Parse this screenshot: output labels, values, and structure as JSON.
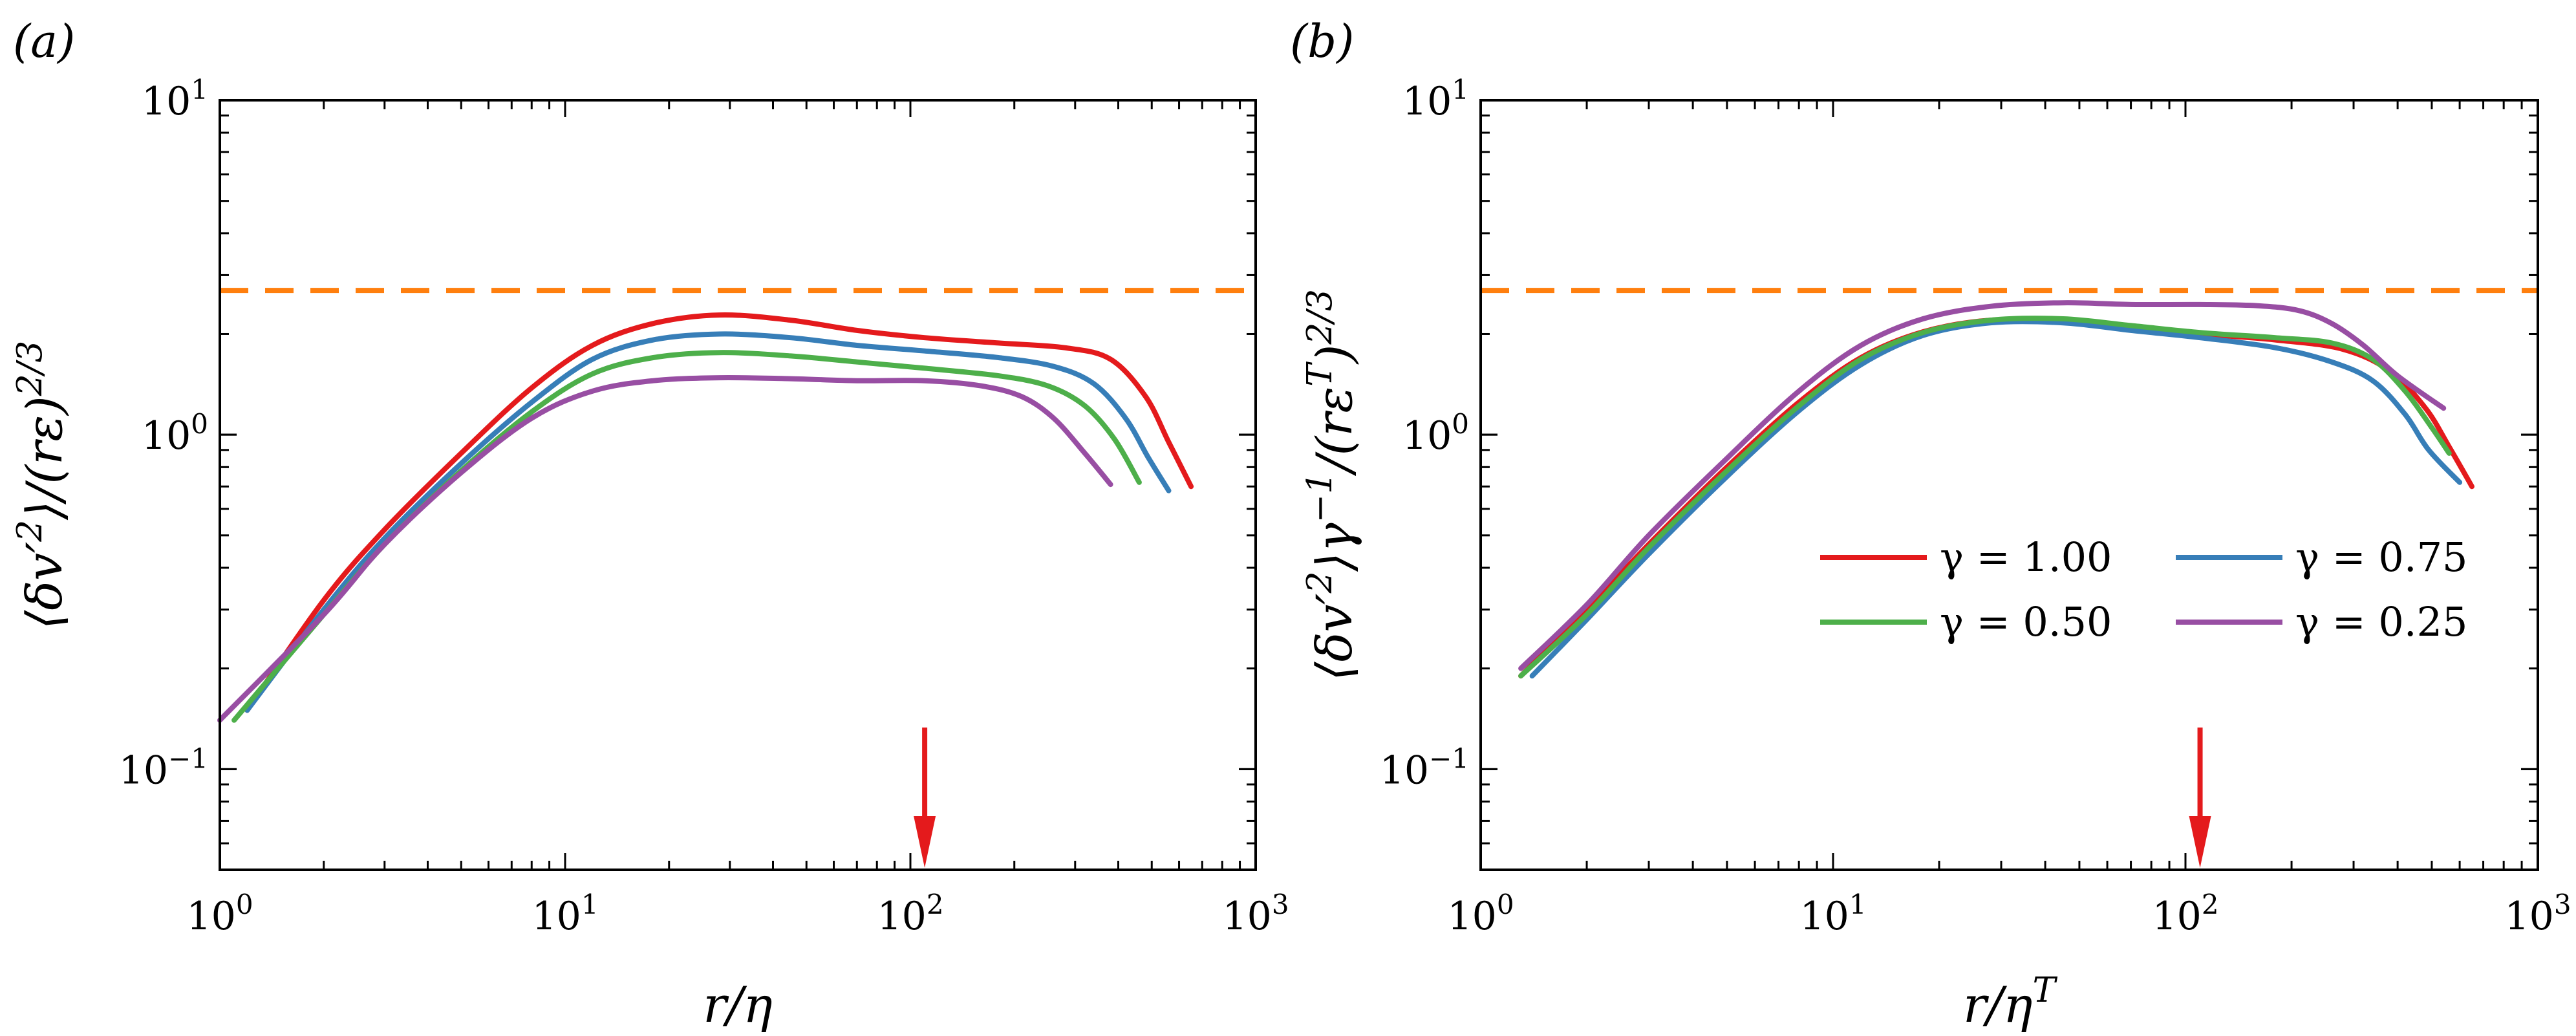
{
  "chart_data": [
    {
      "type": "line",
      "panel_label": "(a)",
      "xlabel": "r/η",
      "ylabel": "⟨δv′²⟩/(rε)^{2/3}",
      "xscale": "log",
      "yscale": "log",
      "xlim": [
        1,
        1000
      ],
      "ylim": [
        0.05,
        10
      ],
      "x_ticks": [
        {
          "v": 1,
          "m": "10",
          "e": "0"
        },
        {
          "v": 10,
          "m": "10",
          "e": "1"
        },
        {
          "v": 100,
          "m": "10",
          "e": "2"
        },
        {
          "v": 1000,
          "m": "10",
          "e": "3"
        }
      ],
      "y_ticks": [
        {
          "v": 0.1,
          "m": "10",
          "e": "−1"
        },
        {
          "v": 1,
          "m": "10",
          "e": "0"
        },
        {
          "v": 10,
          "m": "10",
          "e": "1"
        }
      ],
      "reference_line": {
        "y": 2.7,
        "color": "#ff7f0e",
        "style": "dashed"
      },
      "arrow": {
        "x": 110,
        "color": "#e41a1c"
      },
      "grid": false,
      "series": [
        {
          "gamma": "1.00",
          "color": "#e41a1c",
          "x": [
            1.2,
            2,
            3,
            5,
            8,
            12,
            18,
            28,
            45,
            70,
            110,
            180,
            280,
            380,
            480,
            560,
            650
          ],
          "y": [
            0.15,
            0.32,
            0.52,
            0.88,
            1.38,
            1.85,
            2.15,
            2.28,
            2.2,
            2.05,
            1.95,
            1.88,
            1.82,
            1.68,
            1.3,
            0.95,
            0.7
          ]
        },
        {
          "gamma": "0.75",
          "color": "#377eb8",
          "x": [
            1.2,
            2,
            3,
            5,
            8,
            12,
            18,
            28,
            45,
            70,
            110,
            180,
            260,
            340,
            420,
            490,
            560
          ],
          "y": [
            0.15,
            0.3,
            0.49,
            0.82,
            1.25,
            1.68,
            1.92,
            2.0,
            1.95,
            1.85,
            1.78,
            1.7,
            1.6,
            1.42,
            1.12,
            0.85,
            0.68
          ]
        },
        {
          "gamma": "0.50",
          "color": "#4daf4a",
          "x": [
            1.1,
            2,
            3,
            5,
            8,
            12,
            18,
            28,
            45,
            70,
            110,
            180,
            250,
            320,
            390,
            460
          ],
          "y": [
            0.14,
            0.29,
            0.47,
            0.78,
            1.17,
            1.52,
            1.7,
            1.76,
            1.72,
            1.65,
            1.58,
            1.5,
            1.4,
            1.22,
            0.97,
            0.72
          ]
        },
        {
          "gamma": "0.25",
          "color": "#984ea3",
          "x": [
            1.0,
            2,
            3,
            5,
            8,
            12,
            18,
            28,
            45,
            70,
            110,
            160,
            210,
            260,
            320,
            380
          ],
          "y": [
            0.14,
            0.29,
            0.47,
            0.77,
            1.12,
            1.35,
            1.45,
            1.48,
            1.47,
            1.45,
            1.45,
            1.4,
            1.3,
            1.12,
            0.88,
            0.71
          ]
        }
      ]
    },
    {
      "type": "line",
      "panel_label": "(b)",
      "xlabel": "r/η^T",
      "ylabel": "⟨δv′²⟩γ^{−1}/(rε^T)^{2/3}",
      "xscale": "log",
      "yscale": "log",
      "xlim": [
        1,
        1000
      ],
      "ylim": [
        0.05,
        10
      ],
      "x_ticks": [
        {
          "v": 1,
          "m": "10",
          "e": "0"
        },
        {
          "v": 10,
          "m": "10",
          "e": "1"
        },
        {
          "v": 100,
          "m": "10",
          "e": "2"
        },
        {
          "v": 1000,
          "m": "10",
          "e": "3"
        }
      ],
      "y_ticks": [
        {
          "v": 0.1,
          "m": "10",
          "e": "−1"
        },
        {
          "v": 1,
          "m": "10",
          "e": "0"
        },
        {
          "v": 10,
          "m": "10",
          "e": "1"
        }
      ],
      "reference_line": {
        "y": 2.7,
        "color": "#ff7f0e",
        "style": "dashed"
      },
      "arrow": {
        "x": 110,
        "color": "#e41a1c"
      },
      "grid": false,
      "legend": {
        "placement": "center-right",
        "columns": 2
      },
      "series": [
        {
          "gamma": "1.00",
          "color": "#e41a1c",
          "x": [
            1.3,
            2,
            3,
            5,
            8,
            12,
            18,
            28,
            45,
            70,
            110,
            180,
            280,
            380,
            480,
            560,
            650
          ],
          "y": [
            0.19,
            0.3,
            0.47,
            0.8,
            1.25,
            1.7,
            2.03,
            2.2,
            2.18,
            2.08,
            2.0,
            1.92,
            1.8,
            1.55,
            1.2,
            0.92,
            0.7
          ]
        },
        {
          "gamma": "0.75",
          "color": "#377eb8",
          "x": [
            1.4,
            2,
            3,
            5,
            8,
            12,
            18,
            28,
            45,
            70,
            110,
            180,
            260,
            340,
            420,
            490,
            600
          ],
          "y": [
            0.19,
            0.28,
            0.44,
            0.75,
            1.18,
            1.62,
            1.98,
            2.16,
            2.16,
            2.05,
            1.95,
            1.82,
            1.65,
            1.45,
            1.15,
            0.9,
            0.72
          ]
        },
        {
          "gamma": "0.50",
          "color": "#4daf4a",
          "x": [
            1.3,
            2,
            3,
            5,
            8,
            12,
            18,
            28,
            45,
            70,
            110,
            180,
            260,
            340,
            420,
            500,
            560
          ],
          "y": [
            0.19,
            0.29,
            0.46,
            0.78,
            1.22,
            1.68,
            2.02,
            2.2,
            2.22,
            2.12,
            2.02,
            1.95,
            1.88,
            1.68,
            1.35,
            1.05,
            0.88
          ]
        },
        {
          "gamma": "0.25",
          "color": "#984ea3",
          "x": [
            1.3,
            2,
            3,
            5,
            8,
            12,
            18,
            28,
            45,
            70,
            110,
            160,
            210,
            260,
            320,
            400,
            540
          ],
          "y": [
            0.2,
            0.31,
            0.5,
            0.85,
            1.35,
            1.85,
            2.22,
            2.42,
            2.48,
            2.45,
            2.45,
            2.43,
            2.35,
            2.15,
            1.85,
            1.5,
            1.2
          ]
        }
      ]
    }
  ],
  "legend_entries": [
    {
      "gamma": "1.00",
      "label": "γ = 1.00",
      "color": "#e41a1c"
    },
    {
      "gamma": "0.75",
      "label": "γ = 0.75",
      "color": "#377eb8"
    },
    {
      "gamma": "0.50",
      "label": "γ = 0.50",
      "color": "#4daf4a"
    },
    {
      "gamma": "0.25",
      "label": "γ = 0.25",
      "color": "#984ea3"
    }
  ]
}
